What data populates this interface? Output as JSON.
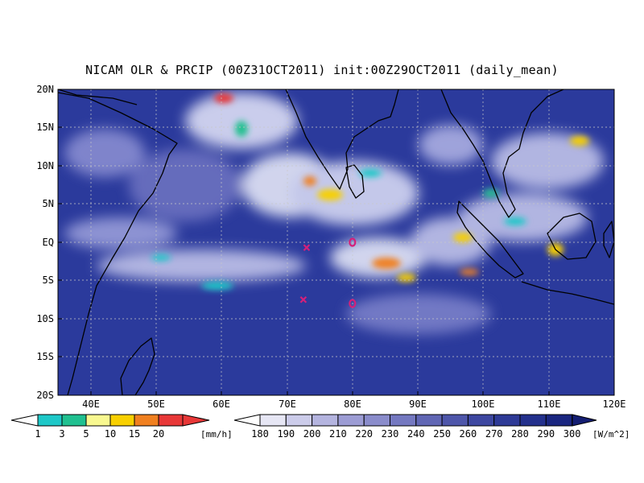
{
  "title": "NICAM OLR & PRCIP (00Z31OCT2011) init:00Z29OCT2011 (daily_mean)",
  "map": {
    "lon_range": [
      35,
      120
    ],
    "lat_range": [
      -20,
      20
    ],
    "lat_ticks": [
      "20N",
      "15N",
      "10N",
      "5N",
      "EQ",
      "5S",
      "10S",
      "15S",
      "20S"
    ],
    "lon_ticks": [
      "40E",
      "50E",
      "60E",
      "70E",
      "80E",
      "90E",
      "100E",
      "110E",
      "120E"
    ],
    "grid": true,
    "ocean_color": "#2b3a9c"
  },
  "markers": [
    {
      "symbol": "x",
      "lon": 73,
      "lat": -0.7,
      "color": "#d4207a"
    },
    {
      "symbol": "o",
      "lon": 80,
      "lat": 0.0,
      "color": "#d4207a"
    },
    {
      "symbol": "x",
      "lon": 72.5,
      "lat": -7.5,
      "color": "#d4207a"
    },
    {
      "symbol": "o",
      "lon": 80,
      "lat": -8.0,
      "color": "#d4207a"
    }
  ],
  "precip_legend": {
    "labels": [
      "1",
      "3",
      "5",
      "10",
      "15",
      "20"
    ],
    "unit": "[mm/h]",
    "colors": [
      "#1ec8c8",
      "#20c090",
      "#f8f890",
      "#f8d000",
      "#f08020",
      "#e83838"
    ]
  },
  "olr_legend": {
    "labels": [
      "180",
      "190",
      "200",
      "210",
      "220",
      "230",
      "240",
      "250",
      "260",
      "270",
      "280",
      "290",
      "300"
    ],
    "unit": "[W/m^2]",
    "colors": [
      "#ffffff",
      "#e6e6f4",
      "#ccccea",
      "#b4b4df",
      "#9c9cd4",
      "#8a8ccb",
      "#7478c0",
      "#6066b4",
      "#4e56aa",
      "#3d47a0",
      "#2e3a96",
      "#23308c",
      "#1a2680",
      "#141e72"
    ]
  }
}
